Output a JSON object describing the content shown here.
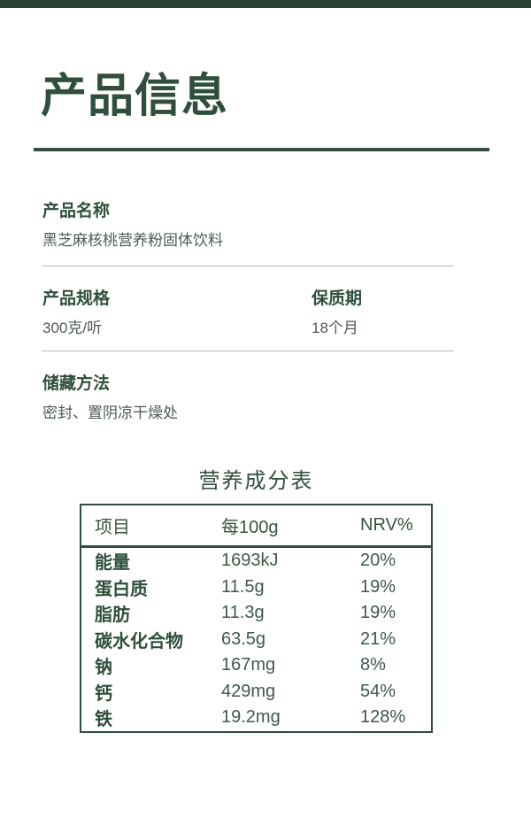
{
  "page": {
    "title": "产品信息",
    "colors": {
      "topbar": "#2b4336",
      "accent_green": "#2f4e3d",
      "body_text": "#4f5a52",
      "separator": "#b3b3b3"
    }
  },
  "sections": {
    "product_name": {
      "label": "产品名称",
      "value": "黑芝麻核桃营养粉固体饮料"
    },
    "spec": {
      "label": "产品规格",
      "value": "300克/听"
    },
    "shelf_life": {
      "label": "保质期",
      "value": "18个月"
    },
    "storage": {
      "label": "储藏方法",
      "value": "密封、置阴凉干燥处"
    }
  },
  "nutrition": {
    "title": "营养成分表",
    "headers": {
      "item": "项目",
      "per100g": "每100g",
      "nrv": "NRV%"
    },
    "rows": [
      {
        "item": "能量",
        "per100g": "1693kJ",
        "nrv": "20%"
      },
      {
        "item": "蛋白质",
        "per100g": "11.5g",
        "nrv": "19%"
      },
      {
        "item": "脂肪",
        "per100g": "11.3g",
        "nrv": "19%"
      },
      {
        "item": "碳水化合物",
        "per100g": "63.5g",
        "nrv": "21%"
      },
      {
        "item": "钠",
        "per100g": "167mg",
        "nrv": "8%"
      },
      {
        "item": "钙",
        "per100g": "429mg",
        "nrv": "54%"
      },
      {
        "item": "铁",
        "per100g": "19.2mg",
        "nrv": "128%"
      }
    ]
  }
}
